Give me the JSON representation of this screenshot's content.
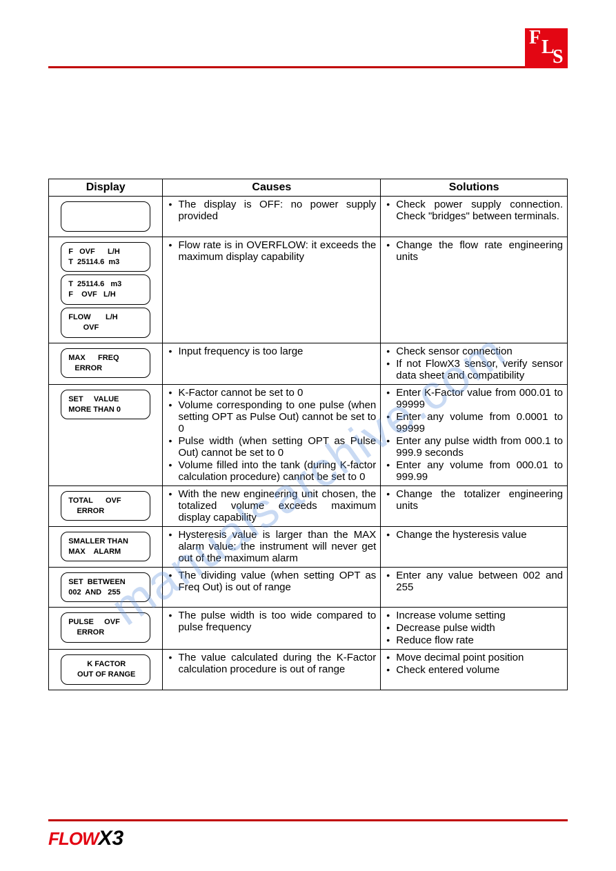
{
  "logo": {
    "f": "F",
    "l": "L",
    "s": "S"
  },
  "watermark": "manualsarchive.com",
  "footer": {
    "flow": "FLOW",
    "x3": "X3"
  },
  "headers": {
    "display": "Display",
    "causes": "Causes",
    "solutions": "Solutions"
  },
  "rows": [
    {
      "displays": [
        {
          "lines": [
            " ",
            " "
          ],
          "center": false
        }
      ],
      "causes": [
        "The display is OFF: no power supply provided"
      ],
      "solutions": [
        "Check power supply connection. Check \"bridges\" between terminals."
      ]
    },
    {
      "displays": [
        {
          "lines": [
            "F   OVF      L/H",
            "T  25114.6  m3"
          ],
          "center": false
        },
        {
          "lines": [
            "T  25114.6   m3",
            "F    OVF   L/H"
          ],
          "center": false
        },
        {
          "lines": [
            "FLOW       L/H",
            "       OVF"
          ],
          "center": false
        }
      ],
      "causes": [
        "Flow rate is in OVERFLOW: it exceeds the maximum display capability"
      ],
      "solutions": [
        "Change the flow rate engineering units"
      ]
    },
    {
      "displays": [
        {
          "lines": [
            "MAX      FREQ",
            "   ERROR"
          ],
          "center": false
        }
      ],
      "causes": [
        "Input frequency is too large"
      ],
      "solutions": [
        "Check sensor connection",
        "If not FlowX3 sensor, verify sensor data sheet and compatibility"
      ]
    },
    {
      "displays": [
        {
          "lines": [
            "SET     VALUE",
            "MORE THAN 0"
          ],
          "center": false
        }
      ],
      "causes": [
        "K-Factor cannot be set to 0",
        "Volume corresponding to one pulse (when setting OPT as Pulse Out) cannot be set to 0",
        "Pulse width (when setting OPT as Pulse Out) cannot be set to 0",
        "Volume filled into the tank (during K-factor calculation procedure) cannot be set to 0"
      ],
      "solutions": [
        "Enter K-Factor value from 000.01 to 99999",
        "Enter any volume from 0.0001 to 99999",
        "Enter any pulse width from 000.1 to 999.9 seconds",
        "Enter any volume from 000.01 to 999.99"
      ]
    },
    {
      "displays": [
        {
          "lines": [
            "TOTAL      OVF",
            "    ERROR"
          ],
          "center": false
        }
      ],
      "causes": [
        "With the new engineering unit chosen, the totalized volume exceeds maximum display capability"
      ],
      "solutions": [
        "Change the totalizer engineering units"
      ]
    },
    {
      "displays": [
        {
          "lines": [
            "SMALLER THAN",
            "MAX    ALARM"
          ],
          "center": false
        }
      ],
      "causes": [
        "Hysteresis value is larger than the MAX alarm value: the instrument will never get out of the maximum alarm"
      ],
      "solutions": [
        "Change the hysteresis value"
      ]
    },
    {
      "displays": [
        {
          "lines": [
            "SET  BETWEEN",
            "002  AND   255"
          ],
          "center": false
        }
      ],
      "causes": [
        "The dividing value (when setting OPT as Freq Out) is out of range"
      ],
      "solutions": [
        "Enter any value between 002 and 255"
      ]
    },
    {
      "displays": [
        {
          "lines": [
            "PULSE     OVF",
            "    ERROR"
          ],
          "center": false
        }
      ],
      "causes": [
        "The pulse width is too wide compared to pulse frequency"
      ],
      "solutions": [
        "Increase volume setting",
        "Decrease pulse width",
        "Reduce flow rate"
      ]
    },
    {
      "displays": [
        {
          "lines": [
            "K FACTOR",
            "OUT OF RANGE"
          ],
          "center": true
        }
      ],
      "causes": [
        "The value calculated during the K-Factor calculation procedure is out of range"
      ],
      "solutions": [
        "Move decimal point position",
        "Check entered volume"
      ]
    }
  ]
}
